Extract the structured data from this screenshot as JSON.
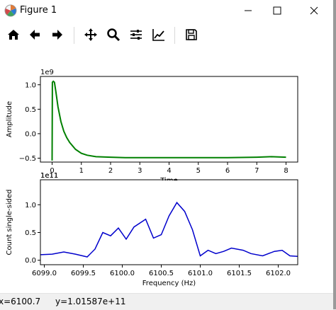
{
  "window": {
    "title": "Figure 1"
  },
  "toolbar": {
    "tools": [
      {
        "icon": "home-icon"
      },
      {
        "icon": "back-arrow-icon"
      },
      {
        "icon": "forward-arrow-icon"
      },
      {
        "icon": "pan-icon"
      },
      {
        "icon": "zoom-icon"
      },
      {
        "icon": "configure-subplots-icon"
      },
      {
        "icon": "edit-axis-icon"
      },
      {
        "icon": "save-icon"
      }
    ]
  },
  "status": {
    "x": "x=6100.7",
    "y": "y=1.01587e+11"
  },
  "colors": {
    "top_series": "#008000",
    "bottom_series": "#0000cc"
  },
  "chart_data": [
    {
      "type": "line",
      "xlabel": "Time",
      "ylabel": "Amplitude",
      "offset_text": "1e9",
      "xlim": [
        -0.4,
        8.4
      ],
      "ylim": [
        -0.58,
        1.17
      ],
      "xticks": [
        0,
        1,
        2,
        3,
        4,
        5,
        6,
        7,
        8
      ],
      "yticks": [
        -0.5,
        0.0,
        0.5,
        1.0
      ],
      "ytick_labels": [
        "−0.5",
        "0.0",
        "0.5",
        "1.0"
      ],
      "series": [
        {
          "color": "#008000",
          "x": [
            0,
            0.01,
            0.04,
            0.08,
            0.13,
            0.2,
            0.3,
            0.4,
            0.5,
            0.6,
            0.8,
            1.0,
            1.2,
            1.5,
            2.0,
            2.5,
            3,
            4,
            5,
            6,
            7,
            7.5,
            8
          ],
          "y": [
            -0.55,
            1.05,
            1.07,
            1.05,
            0.85,
            0.55,
            0.25,
            0.05,
            -0.08,
            -0.18,
            -0.32,
            -0.4,
            -0.44,
            -0.47,
            -0.48,
            -0.49,
            -0.49,
            -0.49,
            -0.49,
            -0.49,
            -0.48,
            -0.47,
            -0.48
          ]
        }
      ]
    },
    {
      "type": "line",
      "xlabel": "Frequency (Hz)",
      "ylabel": "Count single-sided",
      "offset_text": "1e11",
      "xlim": [
        6098.95,
        6102.25
      ],
      "ylim": [
        -0.08,
        1.45
      ],
      "xticks": [
        6099.0,
        6099.5,
        6100.0,
        6100.5,
        6101.0,
        6101.5,
        6102.0
      ],
      "xtick_labels": [
        "6099.0",
        "6099.5",
        "6100.0",
        "6100.5",
        "6101.0",
        "6101.5",
        "6102.0"
      ],
      "yticks": [
        0.0,
        0.5,
        1.0
      ],
      "ytick_labels": [
        "0.0",
        "0.5",
        "1.0"
      ],
      "series": [
        {
          "color": "#0000cc",
          "x": [
            6098.95,
            6099.1,
            6099.25,
            6099.4,
            6099.55,
            6099.65,
            6099.75,
            6099.85,
            6099.95,
            6100.05,
            6100.15,
            6100.3,
            6100.4,
            6100.5,
            6100.6,
            6100.7,
            6100.8,
            6100.9,
            6101.0,
            6101.1,
            6101.2,
            6101.3,
            6101.4,
            6101.55,
            6101.65,
            6101.8,
            6101.95,
            6102.05,
            6102.15,
            6102.25
          ],
          "y": [
            0.1,
            0.11,
            0.15,
            0.11,
            0.06,
            0.2,
            0.5,
            0.44,
            0.58,
            0.38,
            0.6,
            0.74,
            0.4,
            0.46,
            0.8,
            1.04,
            0.88,
            0.55,
            0.08,
            0.18,
            0.12,
            0.16,
            0.22,
            0.18,
            0.12,
            0.08,
            0.16,
            0.18,
            0.08,
            0.07
          ]
        }
      ]
    }
  ]
}
